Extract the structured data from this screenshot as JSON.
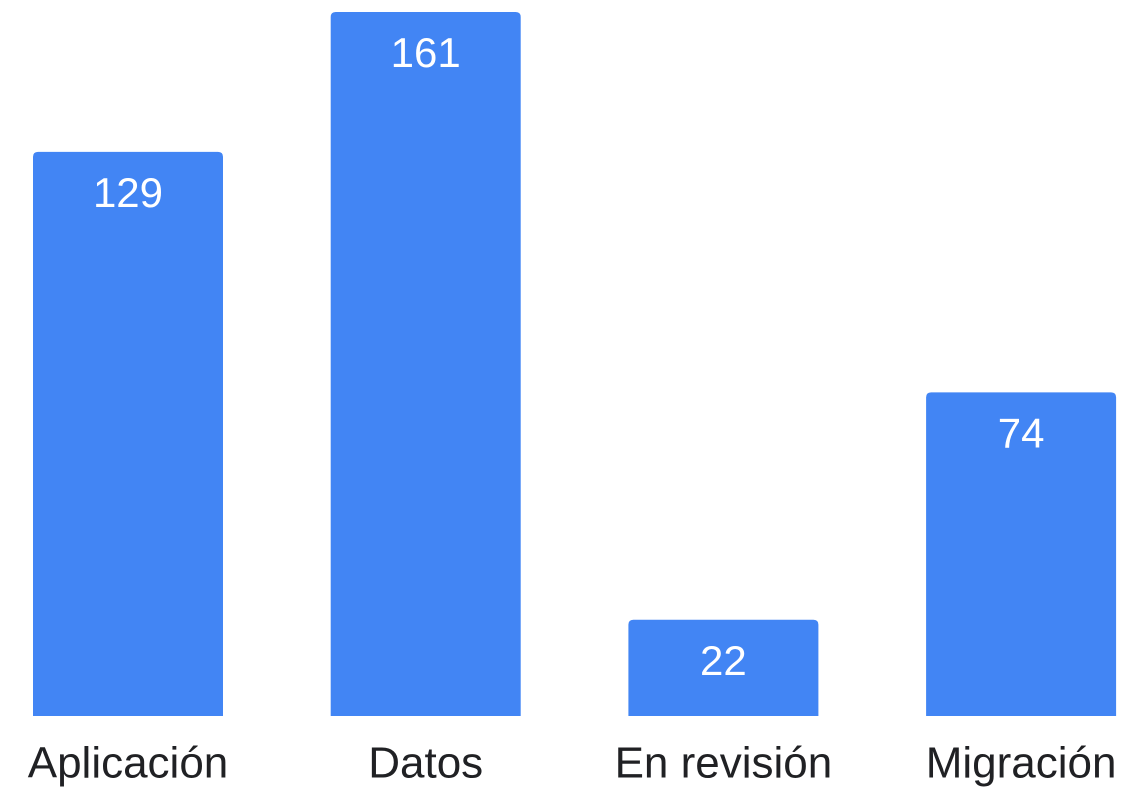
{
  "chart_data": {
    "type": "bar",
    "categories": [
      "Aplicación",
      "Datos",
      "En revisión",
      "Migración"
    ],
    "values": [
      129,
      161,
      22,
      74
    ],
    "color": "#4285f4"
  }
}
